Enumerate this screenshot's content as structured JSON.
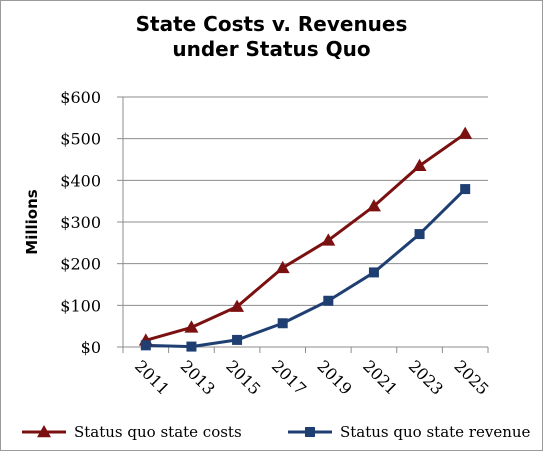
{
  "chart_data": {
    "type": "line",
    "title_line1": "State Costs v. Revenues",
    "title_line2": "under Status Quo",
    "ylabel": "Millions",
    "xlabel": "",
    "x": [
      "2011",
      "2013",
      "2015",
      "2017",
      "2019",
      "2021",
      "2023",
      "2025"
    ],
    "ylim": [
      0,
      600
    ],
    "yticks": [
      {
        "value": 0,
        "label": "$0"
      },
      {
        "value": 100,
        "label": "$100"
      },
      {
        "value": 200,
        "label": "$200"
      },
      {
        "value": 300,
        "label": "$300"
      },
      {
        "value": 400,
        "label": "$400"
      },
      {
        "value": 500,
        "label": "$500"
      },
      {
        "value": 600,
        "label": "$600"
      }
    ],
    "grid": true,
    "legend_position": "bottom",
    "series": [
      {
        "name": "Status quo state costs",
        "color": "#7b1010",
        "marker": "triangle",
        "values": [
          16,
          47,
          97,
          190,
          256,
          338,
          435,
          512
        ]
      },
      {
        "name": "Status quo state revenue",
        "color": "#1f3f72",
        "marker": "square",
        "values": [
          4,
          1,
          17,
          57,
          111,
          179,
          271,
          379
        ]
      }
    ]
  }
}
